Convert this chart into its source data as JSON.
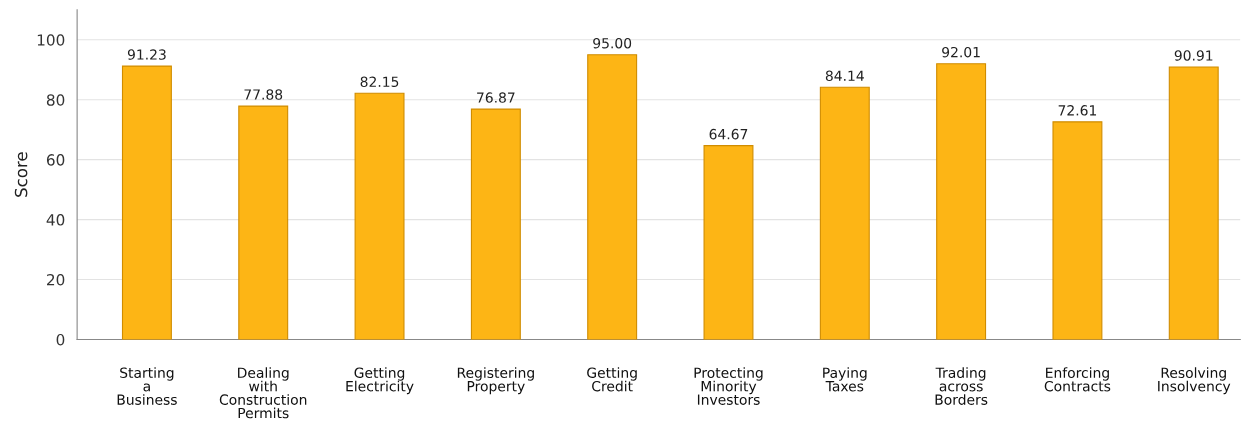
{
  "chart_data": {
    "type": "bar",
    "ylabel": "Score",
    "categories": [
      "Starting\na\nBusiness",
      "Dealing\nwith\nConstruction\nPermits",
      "Getting\nElectricity",
      "Registering\nProperty",
      "Getting\nCredit",
      "Protecting\nMinority\nInvestors",
      "Paying\nTaxes",
      "Trading\nacross\nBorders",
      "Enforcing\nContracts",
      "Resolving\nInsolvency"
    ],
    "values": [
      91.23,
      77.88,
      82.15,
      76.87,
      95.0,
      64.67,
      84.14,
      92.01,
      72.61,
      90.91
    ],
    "value_labels": [
      "91.23",
      "77.88",
      "82.15",
      "76.87",
      "95.00",
      "64.67",
      "84.14",
      "92.01",
      "72.61",
      "90.91"
    ],
    "color": "#fdb515",
    "ylim": [
      0,
      110
    ],
    "yticks": [
      0,
      20,
      40,
      60,
      80,
      100
    ],
    "grid": "y",
    "legend": false
  }
}
